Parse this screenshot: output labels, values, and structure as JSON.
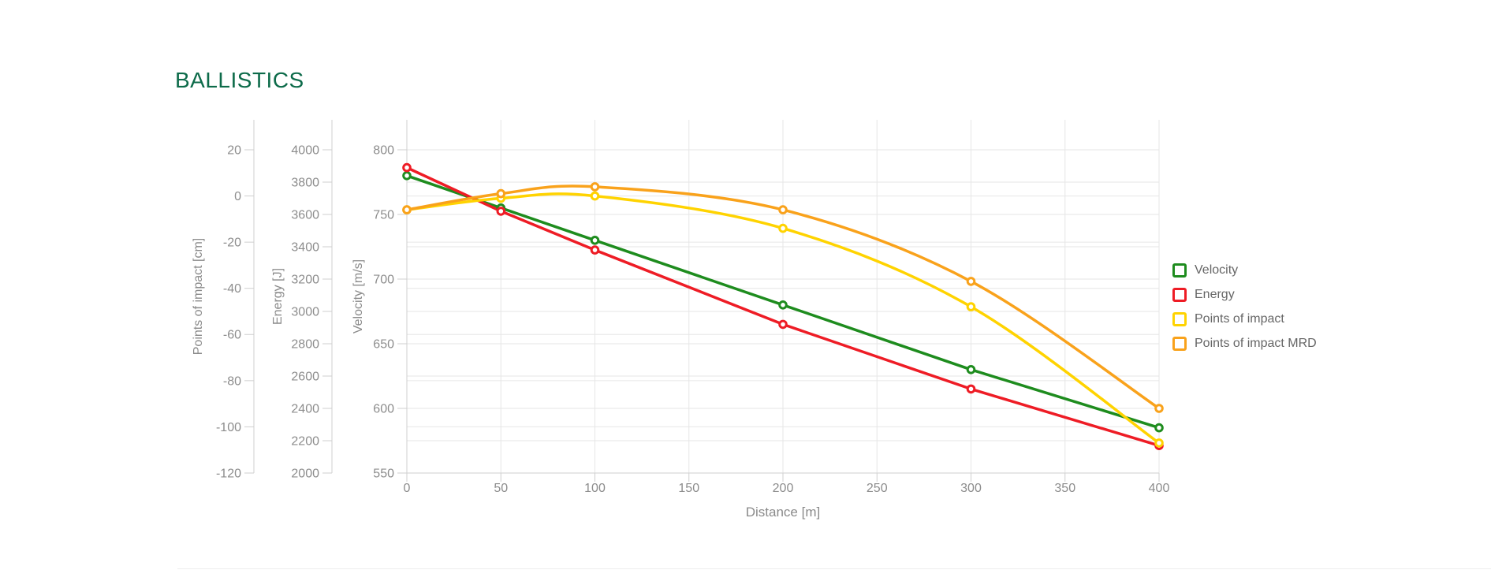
{
  "page": {
    "title": "BALLISTICS"
  },
  "theme": {
    "title_color": "#0d6b4a",
    "grid_color": "#e6e6e6",
    "axis_line_color": "#cfcfcf",
    "tick_label_color": "#8c8c8c",
    "axis_title_color": "#8a8a8a",
    "legend_text_color": "#666666",
    "background_color": "#ffffff"
  },
  "chart_data": {
    "type": "line",
    "title": "BALLISTICS",
    "xlabel": "Distance [m]",
    "xlim": [
      0,
      400
    ],
    "x_ticks": [
      0,
      50,
      100,
      150,
      200,
      250,
      300,
      350,
      400
    ],
    "grid": true,
    "legend_position": "right",
    "x": [
      0,
      50,
      100,
      200,
      300,
      400
    ],
    "y_axes": [
      {
        "id": "poi",
        "title": "Points of impact [cm]",
        "min": -120,
        "max": 20,
        "ticks": [
          20,
          0,
          -20,
          -40,
          -60,
          -80,
          -100,
          -120
        ]
      },
      {
        "id": "energy",
        "title": "Energy [J]",
        "min": 2000,
        "max": 4000,
        "ticks": [
          4000,
          3800,
          3600,
          3400,
          3200,
          3000,
          2800,
          2600,
          2400,
          2200,
          2000
        ]
      },
      {
        "id": "velocity",
        "title": "Velocity [m/s]",
        "min": 550,
        "max": 800,
        "ticks": [
          800,
          750,
          700,
          650,
          600,
          550
        ]
      }
    ],
    "series": [
      {
        "name": "Velocity",
        "axis": "velocity",
        "color": "#1e8c1e",
        "smooth": false,
        "values": [
          780,
          755,
          730,
          680,
          630,
          585
        ]
      },
      {
        "name": "Energy",
        "axis": "energy",
        "color": "#ee1c25",
        "smooth": false,
        "values": [
          3890,
          3620,
          3380,
          2920,
          2520,
          2170
        ]
      },
      {
        "name": "Points of impact",
        "axis": "poi",
        "color": "#ffd300",
        "smooth": true,
        "values": [
          -6,
          -1,
          0,
          -14,
          -48,
          -107
        ]
      },
      {
        "name": "Points of impact MRD",
        "axis": "poi",
        "color": "#f9a21b",
        "smooth": true,
        "values": [
          -6,
          1,
          4,
          -6,
          -37,
          -92
        ]
      }
    ]
  }
}
